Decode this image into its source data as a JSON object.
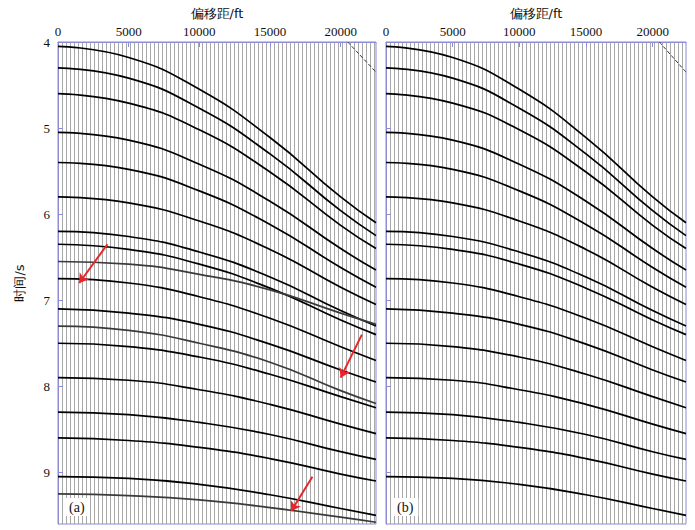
{
  "chart_data": [
    {
      "type": "line",
      "label": "(a)",
      "xlabel": "偏移距/ft",
      "ylabel": "时间/s",
      "xlim": [
        0,
        22500
      ],
      "ylim": [
        9.6,
        4
      ],
      "xticks": [
        0,
        5000,
        10000,
        15000,
        20000
      ],
      "yticks": [
        4,
        5,
        6,
        7,
        8,
        9
      ],
      "series": [
        {
          "color": "#000000",
          "x": [
            0,
            5000,
            10000,
            15000,
            20000,
            22500
          ],
          "values": [
            4.05,
            4.18,
            4.55,
            5.11,
            5.8,
            6.1
          ]
        },
        {
          "color": "#000000",
          "x": [
            0,
            5000,
            10000,
            15000,
            20000,
            22500
          ],
          "values": [
            4.3,
            4.42,
            4.77,
            5.3,
            5.96,
            6.25
          ]
        },
        {
          "color": "#000000",
          "x": [
            0,
            5000,
            10000,
            15000,
            20000,
            22500
          ],
          "values": [
            4.6,
            4.71,
            5.02,
            5.51,
            6.13,
            6.4
          ]
        },
        {
          "color": "#000000",
          "x": [
            0,
            5000,
            10000,
            15000,
            20000,
            22500
          ],
          "values": [
            5.05,
            5.14,
            5.42,
            5.85,
            6.4,
            6.65
          ]
        },
        {
          "color": "#000000",
          "x": [
            0,
            5000,
            10000,
            15000,
            20000,
            22500
          ],
          "values": [
            5.4,
            5.48,
            5.73,
            6.12,
            6.62,
            6.85
          ]
        },
        {
          "color": "#000000",
          "x": [
            0,
            5000,
            10000,
            15000,
            20000,
            22500
          ],
          "values": [
            5.8,
            5.87,
            6.08,
            6.41,
            6.85,
            7.05
          ]
        },
        {
          "color": "#000000",
          "x": [
            0,
            5000,
            10000,
            15000,
            20000,
            22500
          ],
          "values": [
            6.2,
            6.26,
            6.44,
            6.73,
            7.12,
            7.3
          ]
        },
        {
          "color": "#000000",
          "x": [
            0,
            5000,
            10000,
            15000,
            20000,
            22500
          ],
          "values": [
            6.35,
            6.41,
            6.58,
            6.86,
            7.23,
            7.4
          ]
        },
        {
          "color": "#000000",
          "x": [
            0,
            5000,
            10000,
            15000,
            20000,
            22500
          ],
          "values": [
            6.75,
            6.8,
            6.96,
            7.21,
            7.54,
            7.7
          ]
        },
        {
          "color": "#000000",
          "x": [
            0,
            5000,
            10000,
            15000,
            20000,
            22500
          ],
          "values": [
            7.1,
            7.15,
            7.28,
            7.51,
            7.81,
            7.95
          ]
        },
        {
          "color": "#000000",
          "x": [
            0,
            5000,
            10000,
            15000,
            20000,
            22500
          ],
          "values": [
            7.5,
            7.54,
            7.66,
            7.86,
            8.12,
            8.25
          ]
        },
        {
          "color": "#000000",
          "x": [
            0,
            5000,
            10000,
            15000,
            20000,
            22500
          ],
          "values": [
            7.9,
            7.93,
            8.04,
            8.21,
            8.44,
            8.55
          ]
        },
        {
          "color": "#000000",
          "x": [
            0,
            5000,
            10000,
            15000,
            20000,
            22500
          ],
          "values": [
            8.3,
            8.33,
            8.42,
            8.56,
            8.76,
            8.85
          ]
        },
        {
          "color": "#000000",
          "x": [
            0,
            5000,
            10000,
            15000,
            20000,
            22500
          ],
          "values": [
            8.6,
            8.63,
            8.71,
            8.84,
            9.02,
            9.1
          ]
        },
        {
          "color": "#000000",
          "x": [
            0,
            5000,
            10000,
            15000,
            20000,
            22500
          ],
          "values": [
            9.05,
            9.07,
            9.14,
            9.26,
            9.42,
            9.5
          ]
        },
        {
          "color": "#3a3a3a",
          "x": [
            0,
            5000,
            10000,
            15000,
            20000,
            22500
          ],
          "values": [
            6.55,
            6.58,
            6.7,
            6.88,
            7.15,
            7.28
          ]
        },
        {
          "color": "#3a3a3a",
          "x": [
            0,
            5000,
            10000,
            15000,
            20000,
            22500
          ],
          "values": [
            7.3,
            7.35,
            7.5,
            7.72,
            8.05,
            8.2
          ]
        },
        {
          "color": "#3a3a3a",
          "x": [
            0,
            5000,
            10000,
            15000,
            20000,
            22500
          ],
          "values": [
            9.25,
            9.27,
            9.32,
            9.41,
            9.52,
            9.58
          ]
        },
        {
          "color": "#333333",
          "line_style": "dashed",
          "x": [
            20500,
            22500
          ],
          "values": [
            4.0,
            4.35
          ]
        }
      ],
      "arrows": [
        {
          "from": [
            3500,
            6.35
          ],
          "to": [
            1500,
            6.8
          ],
          "color": "#e8262a"
        },
        {
          "from": [
            21500,
            7.4
          ],
          "to": [
            20000,
            7.9
          ],
          "color": "#e8262a"
        },
        {
          "from": [
            18000,
            9.05
          ],
          "to": [
            16500,
            9.45
          ],
          "color": "#e8262a"
        }
      ]
    },
    {
      "type": "line",
      "label": "(b)",
      "xlabel": "偏移距/ft",
      "tick_labels": "x",
      "xlim": [
        0,
        22500
      ],
      "ylim": [
        9.6,
        4
      ],
      "xticks": [
        0,
        5000,
        10000,
        15000,
        20000
      ],
      "yticks": [
        4,
        5,
        6,
        7,
        8,
        9
      ],
      "series": [
        {
          "color": "#000000",
          "x": [
            0,
            5000,
            10000,
            15000,
            20000,
            22500
          ],
          "values": [
            4.05,
            4.18,
            4.55,
            5.11,
            5.8,
            6.1
          ]
        },
        {
          "color": "#000000",
          "x": [
            0,
            5000,
            10000,
            15000,
            20000,
            22500
          ],
          "values": [
            4.3,
            4.42,
            4.77,
            5.3,
            5.96,
            6.25
          ]
        },
        {
          "color": "#000000",
          "x": [
            0,
            5000,
            10000,
            15000,
            20000,
            22500
          ],
          "values": [
            4.6,
            4.71,
            5.02,
            5.51,
            6.13,
            6.4
          ]
        },
        {
          "color": "#000000",
          "x": [
            0,
            5000,
            10000,
            15000,
            20000,
            22500
          ],
          "values": [
            5.05,
            5.14,
            5.42,
            5.85,
            6.4,
            6.65
          ]
        },
        {
          "color": "#000000",
          "x": [
            0,
            5000,
            10000,
            15000,
            20000,
            22500
          ],
          "values": [
            5.4,
            5.48,
            5.73,
            6.12,
            6.62,
            6.85
          ]
        },
        {
          "color": "#000000",
          "x": [
            0,
            5000,
            10000,
            15000,
            20000,
            22500
          ],
          "values": [
            5.8,
            5.87,
            6.08,
            6.41,
            6.85,
            7.05
          ]
        },
        {
          "color": "#000000",
          "x": [
            0,
            5000,
            10000,
            15000,
            20000,
            22500
          ],
          "values": [
            6.2,
            6.26,
            6.44,
            6.73,
            7.12,
            7.3
          ]
        },
        {
          "color": "#000000",
          "x": [
            0,
            5000,
            10000,
            15000,
            20000,
            22500
          ],
          "values": [
            6.35,
            6.41,
            6.58,
            6.86,
            7.23,
            7.4
          ]
        },
        {
          "color": "#000000",
          "x": [
            0,
            5000,
            10000,
            15000,
            20000,
            22500
          ],
          "values": [
            6.75,
            6.8,
            6.96,
            7.21,
            7.54,
            7.7
          ]
        },
        {
          "color": "#000000",
          "x": [
            0,
            5000,
            10000,
            15000,
            20000,
            22500
          ],
          "values": [
            7.1,
            7.15,
            7.28,
            7.51,
            7.81,
            7.95
          ]
        },
        {
          "color": "#000000",
          "x": [
            0,
            5000,
            10000,
            15000,
            20000,
            22500
          ],
          "values": [
            7.5,
            7.54,
            7.66,
            7.86,
            8.12,
            8.25
          ]
        },
        {
          "color": "#000000",
          "x": [
            0,
            5000,
            10000,
            15000,
            20000,
            22500
          ],
          "values": [
            7.9,
            7.93,
            8.04,
            8.21,
            8.44,
            8.55
          ]
        },
        {
          "color": "#000000",
          "x": [
            0,
            5000,
            10000,
            15000,
            20000,
            22500
          ],
          "values": [
            8.3,
            8.33,
            8.42,
            8.56,
            8.76,
            8.85
          ]
        },
        {
          "color": "#000000",
          "x": [
            0,
            5000,
            10000,
            15000,
            20000,
            22500
          ],
          "values": [
            8.6,
            8.63,
            8.71,
            8.84,
            9.02,
            9.1
          ]
        },
        {
          "color": "#000000",
          "x": [
            0,
            5000,
            10000,
            15000,
            20000,
            22500
          ],
          "values": [
            9.05,
            9.07,
            9.14,
            9.26,
            9.42,
            9.5
          ]
        },
        {
          "color": "#333333",
          "line_style": "dashed",
          "x": [
            20500,
            22500
          ],
          "values": [
            4.0,
            4.35
          ]
        }
      ]
    }
  ]
}
